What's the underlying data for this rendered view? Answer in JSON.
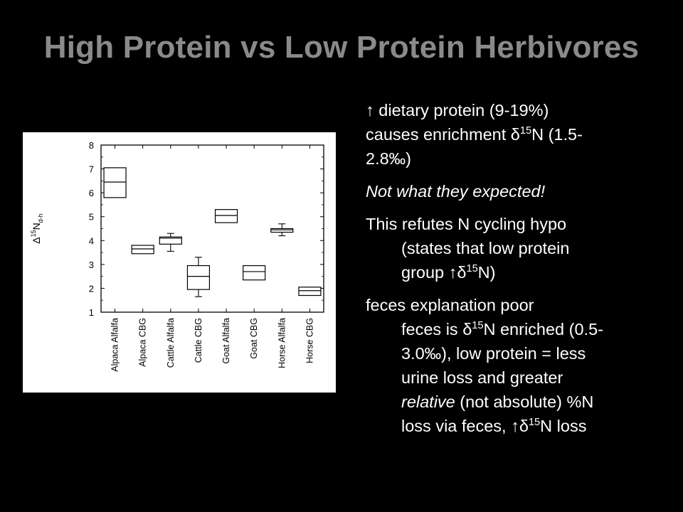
{
  "slide": {
    "title": "High Protein vs Low Protein Herbivores"
  },
  "bullets": {
    "p1": {
      "line1": "↑ dietary protein (9-19%)",
      "line2_a": "causes enrichment δ",
      "line2_sup": "15",
      "line2_b": "N (1.5-",
      "line3": "2.8‰)"
    },
    "p2": "Not what they expected!",
    "p3": {
      "line1": "This refutes N cycling hypo",
      "line2": "(states that low protein",
      "line3_a": "group ↑δ",
      "line3_sup": "15",
      "line3_b": "N)"
    },
    "p4": {
      "line1": "feces explanation  poor",
      "line2_a": "feces is δ",
      "line2_sup": "15",
      "line2_b": "N enriched (0.5-",
      "line3": "3.0‰), low protein = less",
      "line4": "urine loss and greater",
      "line5_em": "relative",
      "line5_rest": " (not absolute) %N",
      "line6_a": "loss via feces, ↑δ",
      "line6_sup": "15",
      "line6_b": "N loss"
    }
  },
  "chart_data": {
    "type": "box",
    "ylabel": {
      "delta": "Δ",
      "sup": "15",
      "base": "N",
      "sub": "d-h"
    },
    "ylim": [
      1,
      8
    ],
    "yticks": [
      1,
      2,
      3,
      4,
      5,
      6,
      7,
      8
    ],
    "grid": false,
    "categories": [
      "Alpaca Alfalfa",
      "Alpaca CBG",
      "Cattle Alfalfa",
      "Cattle CBG",
      "Goat Alfalfa",
      "Goat CBG",
      "Horse Alfalfa",
      "Horse CBG"
    ],
    "boxes": [
      {
        "q1": 5.8,
        "median": 6.45,
        "q3": 7.05
      },
      {
        "q1": 3.45,
        "median": 3.65,
        "q3": 3.8
      },
      {
        "whisker_low": 3.55,
        "q1": 3.85,
        "median": 4.1,
        "q3": 4.15,
        "whisker_high": 4.3
      },
      {
        "whisker_low": 1.65,
        "q1": 1.95,
        "median": 2.5,
        "q3": 2.95,
        "whisker_high": 3.3
      },
      {
        "q1": 4.75,
        "median": 5.05,
        "q3": 5.3
      },
      {
        "q1": 2.35,
        "median": 2.7,
        "q3": 2.95
      },
      {
        "whisker_low": 4.2,
        "q1": 4.35,
        "median": 4.45,
        "q3": 4.5,
        "whisker_high": 4.7
      },
      {
        "q1": 1.7,
        "median": 1.9,
        "q3": 2.05
      }
    ],
    "colors": {
      "background": "#ffffff",
      "ink": "#000000"
    }
  }
}
